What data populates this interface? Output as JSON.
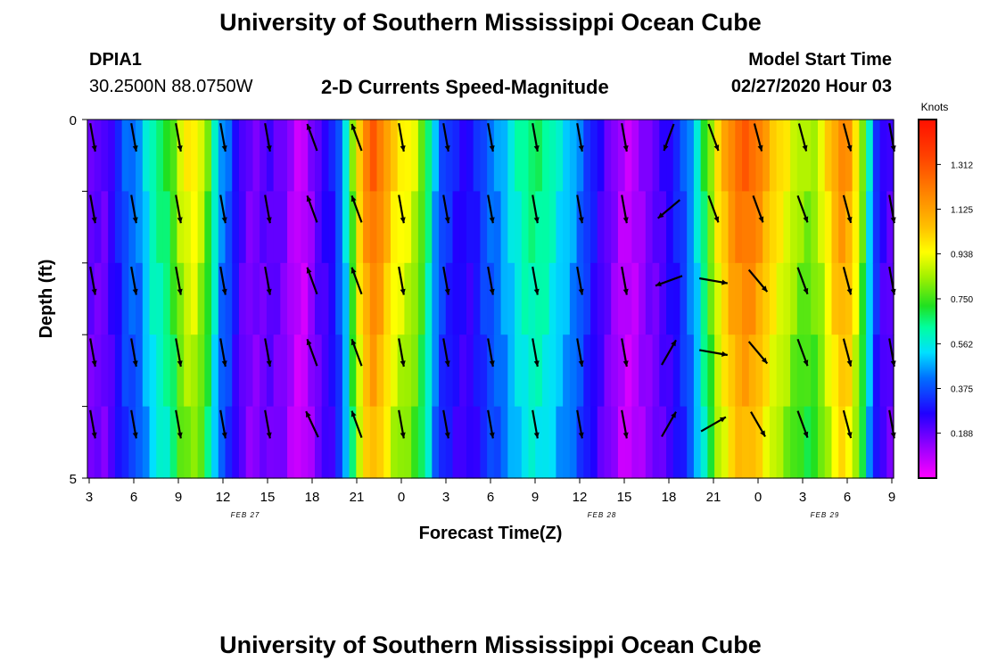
{
  "header": {
    "title_top": "University of Southern Mississippi Ocean Cube",
    "title_bottom": "University of Southern Mississippi Ocean Cube",
    "station_id": "DPIA1",
    "station_coords": "30.2500N 88.0750W",
    "plot_title": "2-D Currents Speed-Magnitude",
    "model_start_label": "Model Start Time",
    "model_start_value": "02/27/2020 Hour 03"
  },
  "chart_data": {
    "type": "heatmap",
    "title": "2-D Currents Speed-Magnitude",
    "xlabel": "Forecast Time(Z)",
    "ylabel": "Depth (ft)",
    "ylim": [
      0,
      5
    ],
    "y_ticks": [
      "0",
      "5"
    ],
    "x_tick_labels": [
      "3",
      "6",
      "9",
      "12",
      "15",
      "18",
      "21",
      "0",
      "3",
      "6",
      "9",
      "12",
      "15",
      "18",
      "21",
      "0",
      "3",
      "6",
      "9"
    ],
    "date_labels": [
      {
        "text": "FEB 27",
        "at_tick": 3.5
      },
      {
        "text": "FEB 28",
        "at_tick": 11.5
      },
      {
        "text": "FEB 29",
        "at_tick": 16.5
      }
    ],
    "colorbar": {
      "unit": "Knots",
      "tick_labels": [
        "1.312",
        "1.125",
        "0.938",
        "0.750",
        "0.562",
        "0.375",
        "0.188"
      ],
      "tick_values": [
        1.312,
        1.125,
        0.938,
        0.75,
        0.562,
        0.375,
        0.188
      ],
      "range": [
        0,
        1.5
      ]
    },
    "hours_per_col": 1,
    "speed_profile_knots": [
      0.2,
      0.2,
      0.2,
      0.26,
      0.32,
      0.4,
      0.43,
      0.45,
      0.54,
      0.62,
      0.66,
      0.7,
      0.78,
      0.9,
      0.96,
      0.98,
      0.9,
      0.78,
      0.6,
      0.45,
      0.4,
      0.3,
      0.22,
      0.18,
      0.18,
      0.2,
      0.22,
      0.2,
      0.18,
      0.12,
      0.08,
      0.08,
      0.15,
      0.22,
      0.26,
      0.3,
      0.4,
      0.55,
      0.8,
      1.05,
      1.2,
      1.28,
      1.22,
      1.12,
      1.02,
      0.98,
      0.95,
      0.9,
      0.8,
      0.65,
      0.48,
      0.38,
      0.34,
      0.3,
      0.28,
      0.28,
      0.32,
      0.38,
      0.42,
      0.45,
      0.5,
      0.55,
      0.6,
      0.64,
      0.66,
      0.66,
      0.64,
      0.6,
      0.55,
      0.52,
      0.48,
      0.42,
      0.36,
      0.3,
      0.25,
      0.2,
      0.15,
      0.1,
      0.08,
      0.1,
      0.14,
      0.18,
      0.2,
      0.24,
      0.28,
      0.32,
      0.38,
      0.46,
      0.56,
      0.7,
      0.84,
      1.0,
      1.1,
      1.2,
      1.25,
      1.28,
      1.26,
      1.2,
      1.12,
      1.05,
      1.0,
      0.96,
      0.9,
      0.86,
      0.84,
      0.86,
      0.92,
      1.02,
      1.12,
      1.18,
      1.14,
      1.0,
      0.8,
      0.55,
      0.35,
      0.25,
      0.22
    ],
    "arrows": {
      "times_hours": [
        0,
        3,
        6,
        9,
        12,
        15,
        18,
        21,
        24,
        27,
        30,
        33,
        36,
        39,
        42,
        45,
        48,
        51,
        54
      ],
      "rows": 5,
      "direction_deg": [
        [
          170,
          170,
          170,
          170,
          170,
          -20,
          -20,
          170,
          170,
          170,
          170,
          170,
          170,
          200,
          160,
          165,
          165,
          165,
          170
        ],
        [
          170,
          170,
          170,
          170,
          170,
          -20,
          -20,
          170,
          170,
          170,
          170,
          170,
          170,
          230,
          160,
          160,
          160,
          165,
          170
        ],
        [
          170,
          170,
          170,
          170,
          170,
          -20,
          -20,
          170,
          170,
          170,
          170,
          170,
          170,
          250,
          100,
          140,
          160,
          165,
          170
        ],
        [
          170,
          170,
          170,
          170,
          170,
          -20,
          -20,
          170,
          170,
          170,
          170,
          170,
          170,
          30,
          100,
          140,
          160,
          165,
          170
        ],
        [
          170,
          170,
          170,
          170,
          170,
          -25,
          -20,
          170,
          170,
          170,
          170,
          170,
          170,
          30,
          60,
          150,
          160,
          165,
          170
        ]
      ]
    }
  }
}
